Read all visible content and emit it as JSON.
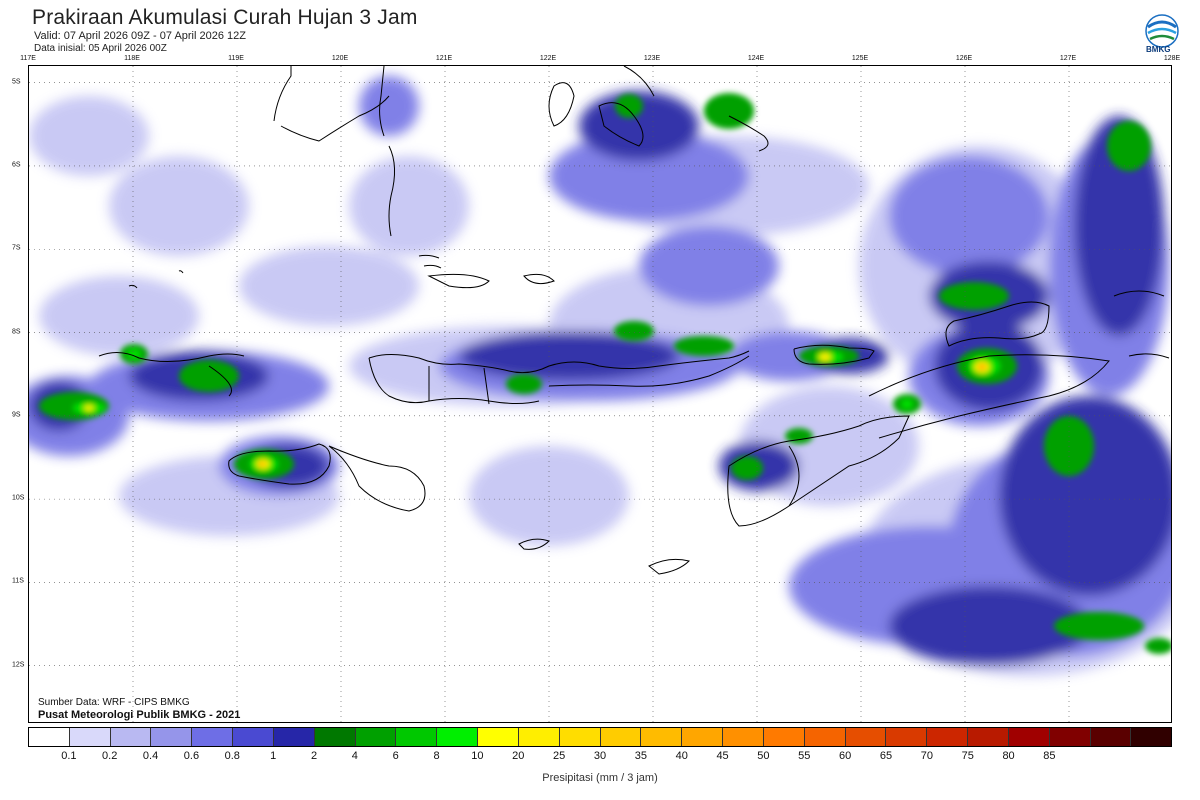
{
  "header": {
    "title": "Prakiraan Akumulasi Curah Hujan 3 Jam",
    "valid": "Valid: 07 April 2026 09Z - 07 April 2026 12Z",
    "initial": "Data inisial: 05 April 2026 00Z"
  },
  "logo": {
    "text": "BMKG",
    "icon": "bmkg-logo-icon"
  },
  "map": {
    "lon_labels": [
      "117E",
      "118E",
      "119E",
      "120E",
      "121E",
      "122E",
      "123E",
      "124E",
      "125E",
      "126E",
      "127E",
      "128E"
    ],
    "lat_labels": [
      "5S",
      "6S",
      "7S",
      "8S",
      "9S",
      "10S",
      "11S",
      "12S"
    ],
    "lon_range": [
      117,
      128
    ],
    "lat_range": [
      -4.8,
      -12.7
    ]
  },
  "footer": {
    "source": "Sumber Data: WRF - CIPS BMKG",
    "center": "Pusat Meteorologi Publik BMKG - 2021"
  },
  "legend": {
    "colors": [
      "#ffffff",
      "#d9d9fa",
      "#b9b9f2",
      "#9595ea",
      "#6e6ee6",
      "#4a4ad2",
      "#2626a8",
      "#007800",
      "#00a000",
      "#00c800",
      "#00ef00",
      "#ffff00",
      "#ffee00",
      "#ffdd00",
      "#ffcc00",
      "#ffbb00",
      "#ffa600",
      "#ff9000",
      "#ff7a00",
      "#f56400",
      "#e64e00",
      "#d93a00",
      "#cc2600",
      "#b81a00",
      "#a00000",
      "#800000",
      "#5a0000",
      "#300000"
    ],
    "labels": [
      "0.1",
      "0.2",
      "0.4",
      "0.6",
      "0.8",
      "1",
      "2",
      "4",
      "6",
      "8",
      "10",
      "20",
      "25",
      "30",
      "35",
      "40",
      "45",
      "50",
      "55",
      "60",
      "65",
      "70",
      "75",
      "80",
      "85"
    ],
    "unit": "Presipitasi (mm / 3 jam)"
  }
}
